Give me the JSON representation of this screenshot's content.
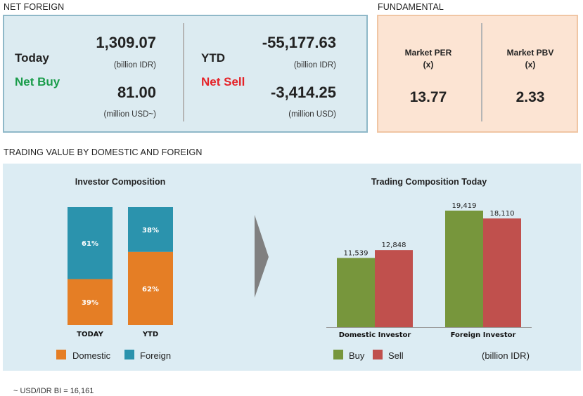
{
  "net_foreign": {
    "section_title": "NET FOREIGN",
    "today": {
      "label": "Today",
      "status": "Net Buy",
      "value_idr": "1,309.07",
      "unit_idr": "(billion IDR)",
      "value_usd": "81.00",
      "unit_usd": "(million USD~)"
    },
    "ytd": {
      "label": "YTD",
      "status": "Net Sell",
      "value_idr": "-55,177.63",
      "unit_idr": "(billion IDR)",
      "value_usd": "-3,414.25",
      "unit_usd": "(million USD)"
    }
  },
  "fundamental": {
    "section_title": "FUNDAMENTAL",
    "per": {
      "label": "Market PER",
      "sub": "(x)",
      "value": "13.77"
    },
    "pbv": {
      "label": "Market PBV",
      "sub": "(x)",
      "value": "2.33"
    }
  },
  "trading_value": {
    "section_title": "TRADING VALUE BY DOMESTIC AND FOREIGN"
  },
  "footnote": "~ USD/IDR BI = 16,161",
  "colors": {
    "domestic": "#e57e25",
    "foreign": "#2b93ad",
    "buy": "#77963c",
    "sell": "#c0504d"
  },
  "chart_data": [
    {
      "type": "bar",
      "stacked": true,
      "percent": true,
      "title": "Investor Composition",
      "categories": [
        "TODAY",
        "YTD"
      ],
      "series": [
        {
          "name": "Domestic",
          "values": [
            39,
            62
          ],
          "color": "#e57e25"
        },
        {
          "name": "Foreign",
          "values": [
            61,
            38
          ],
          "color": "#2b93ad"
        }
      ],
      "legend": "bottom",
      "grid": false
    },
    {
      "type": "bar",
      "title": "Trading Composition Today",
      "categories": [
        "Domestic Investor",
        "Foreign Investor"
      ],
      "series": [
        {
          "name": "Buy",
          "values": [
            11539,
            19419
          ],
          "color": "#77963c"
        },
        {
          "name": "Sell",
          "values": [
            12848,
            18110
          ],
          "color": "#c0504d"
        }
      ],
      "value_labels": [
        [
          "11,539",
          "12,848"
        ],
        [
          "19,419",
          "18,110"
        ]
      ],
      "unit": "(billion IDR)",
      "ylim": [
        0,
        20000
      ],
      "legend": "bottom",
      "grid": false
    }
  ]
}
